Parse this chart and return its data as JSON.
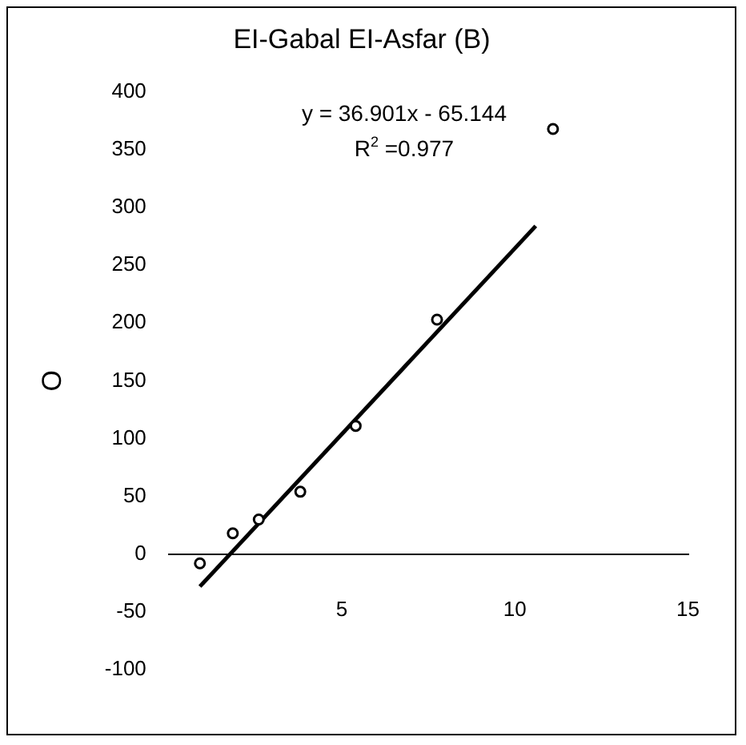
{
  "chart_data": {
    "type": "scatter",
    "title": "EI-Gabal EI-Asfar (B)",
    "ylabel": "O",
    "xlim": [
      0,
      15
    ],
    "xticks": [
      5,
      10,
      15
    ],
    "ylim": [
      -100,
      400
    ],
    "yticks": [
      -100,
      -50,
      0,
      50,
      100,
      150,
      200,
      250,
      300,
      350,
      400
    ],
    "grid": false,
    "legend": false,
    "marker": "circle",
    "annotations": [
      "y = 36.901x - 65.144",
      "R$^{2}$ =0.977"
    ],
    "series": [
      {
        "type": "scatter",
        "color": "#000000",
        "x": [
          0.9,
          1.85,
          2.6,
          3.8,
          5.4,
          7.75,
          11.1
        ],
        "values": [
          -8,
          18,
          30,
          54,
          111,
          203,
          368
        ]
      },
      {
        "type": "line",
        "color": "#000000",
        "x": [
          0.9,
          10.6
        ],
        "values": [
          -28,
          284
        ],
        "marker": "none",
        "line_style": "solid"
      }
    ]
  }
}
